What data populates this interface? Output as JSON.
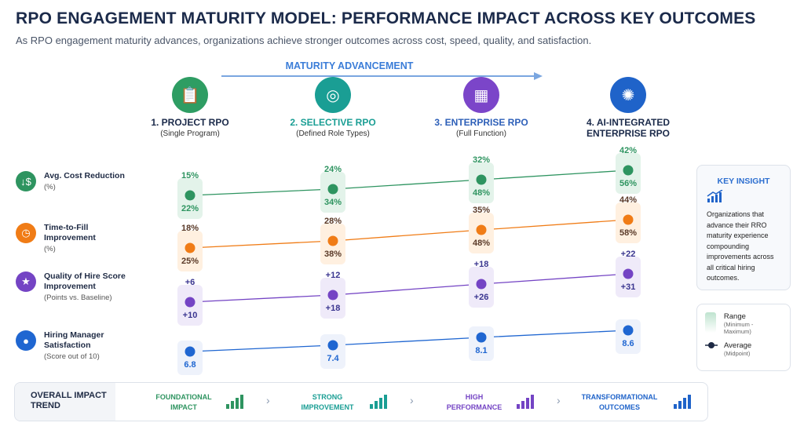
{
  "title": "RPO ENGAGEMENT MATURITY MODEL: PERFORMANCE IMPACT ACROSS KEY OUTCOMES",
  "subtitle": "As RPO engagement maturity advances, organizations achieve stronger outcomes across cost, speed, quality, and satisfaction.",
  "advancement_label": "MATURITY ADVANCEMENT",
  "stages": [
    {
      "name": "1. PROJECT RPO",
      "sub": "(Single Program)",
      "color": "#2e9d63",
      "icon": "clipboard-check-icon"
    },
    {
      "name": "2. SELECTIVE RPO",
      "sub": "(Defined Role Types)",
      "color": "#1a9e94",
      "icon": "target-icon"
    },
    {
      "name": "3. ENTERPRISE RPO",
      "sub": "(Full Function)",
      "color": "#7b45c9",
      "icon": "building-icon"
    },
    {
      "name": "4. AI-INTEGRATED ENTERPRISE RPO",
      "sub": "",
      "color": "#1f63c9",
      "icon": "brain-icon"
    }
  ],
  "metrics": [
    {
      "name": "Avg. Cost Reduction",
      "unit": "(%)",
      "color": "#2e9460",
      "icon": "cost-down-icon",
      "values": [
        [
          "15%",
          "22%"
        ],
        [
          "24%",
          "34%"
        ],
        [
          "32%",
          "48%"
        ],
        [
          "42%",
          "56%"
        ]
      ]
    },
    {
      "name": "Time-to-Fill Improvement",
      "unit": "(%)",
      "color": "#f07c16",
      "icon": "clock-icon",
      "values": [
        [
          "18%",
          "25%"
        ],
        [
          "28%",
          "38%"
        ],
        [
          "35%",
          "48%"
        ],
        [
          "44%",
          "58%"
        ]
      ]
    },
    {
      "name": "Quality of Hire Score Improvement",
      "unit": "(Points vs. Baseline)",
      "color": "#7444c4",
      "icon": "star-icon",
      "values": [
        [
          "+6",
          "+10"
        ],
        [
          "+12",
          "+18"
        ],
        [
          "+18",
          "+26"
        ],
        [
          "+22",
          "+31"
        ]
      ]
    },
    {
      "name": "Hiring Manager Satisfaction",
      "unit": "(Score out of 10)",
      "color": "#1f66d1",
      "icon": "user-icon",
      "values": [
        [
          "",
          "6.8"
        ],
        [
          "",
          "7.4"
        ],
        [
          "",
          "8.1"
        ],
        [
          "",
          "8.6"
        ]
      ]
    }
  ],
  "insight": {
    "title": "KEY INSIGHT",
    "text": "Organizations that advance their RRO maturity experience compounding improvements across all critical hiring outcomes."
  },
  "legend": {
    "range": "Range",
    "range_sub": "(Minimum - Maximum)",
    "average": "Average",
    "average_sub": "(Midpoint)"
  },
  "trend": {
    "label": "OVERALL IMPACT TREND",
    "items": [
      {
        "text": "FOUNDATIONAL IMPACT",
        "color": "#2e9460"
      },
      {
        "text": "STRONG IMPROVEMENT",
        "color": "#1a9e94"
      },
      {
        "text": "HIGH PERFORMANCE",
        "color": "#7444c4"
      },
      {
        "text": "TRANSFORMATIONAL OUTCOMES",
        "color": "#1f63c9"
      }
    ]
  }
}
